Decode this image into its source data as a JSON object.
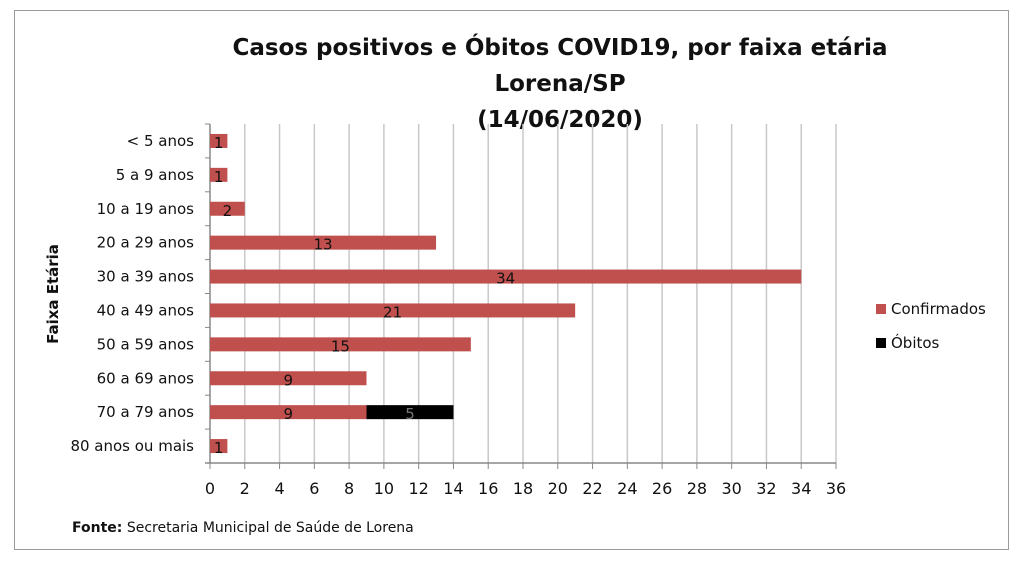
{
  "chart_data": {
    "type": "bar",
    "orientation": "horizontal",
    "stacked": true,
    "title_line1": "Casos positivos e Óbitos COVID19, por faixa etária Lorena/SP",
    "title_line2": "(14/06/2020)",
    "xlabel": "",
    "ylabel": "Faixa Etária",
    "xlim": [
      0,
      36
    ],
    "xticks": [
      "0",
      "2",
      "4",
      "6",
      "8",
      "10",
      "12",
      "14",
      "16",
      "18",
      "20",
      "22",
      "24",
      "26",
      "28",
      "30",
      "32",
      "34",
      "36"
    ],
    "grid": true,
    "legend_position": "right",
    "categories": [
      "< 5 anos",
      "5 a 9 anos",
      "10 a 19 anos",
      "20 a 29 anos",
      "30 a 39 anos",
      "40 a 49 anos",
      "50 a 59 anos",
      "60 a 69 anos",
      "70 a 79 anos",
      "80 anos ou mais"
    ],
    "series": [
      {
        "name": "Confirmados",
        "color": "#c0504d",
        "values": [
          1,
          1,
          2,
          13,
          34,
          21,
          15,
          9,
          9,
          1
        ]
      },
      {
        "name": "Óbitos",
        "color": "#000000",
        "values": [
          0,
          0,
          0,
          0,
          0,
          0,
          0,
          0,
          5,
          0
        ]
      }
    ]
  },
  "source": {
    "label": "Fonte:",
    "text": "Secretaria Municipal de Saúde de Lorena"
  }
}
